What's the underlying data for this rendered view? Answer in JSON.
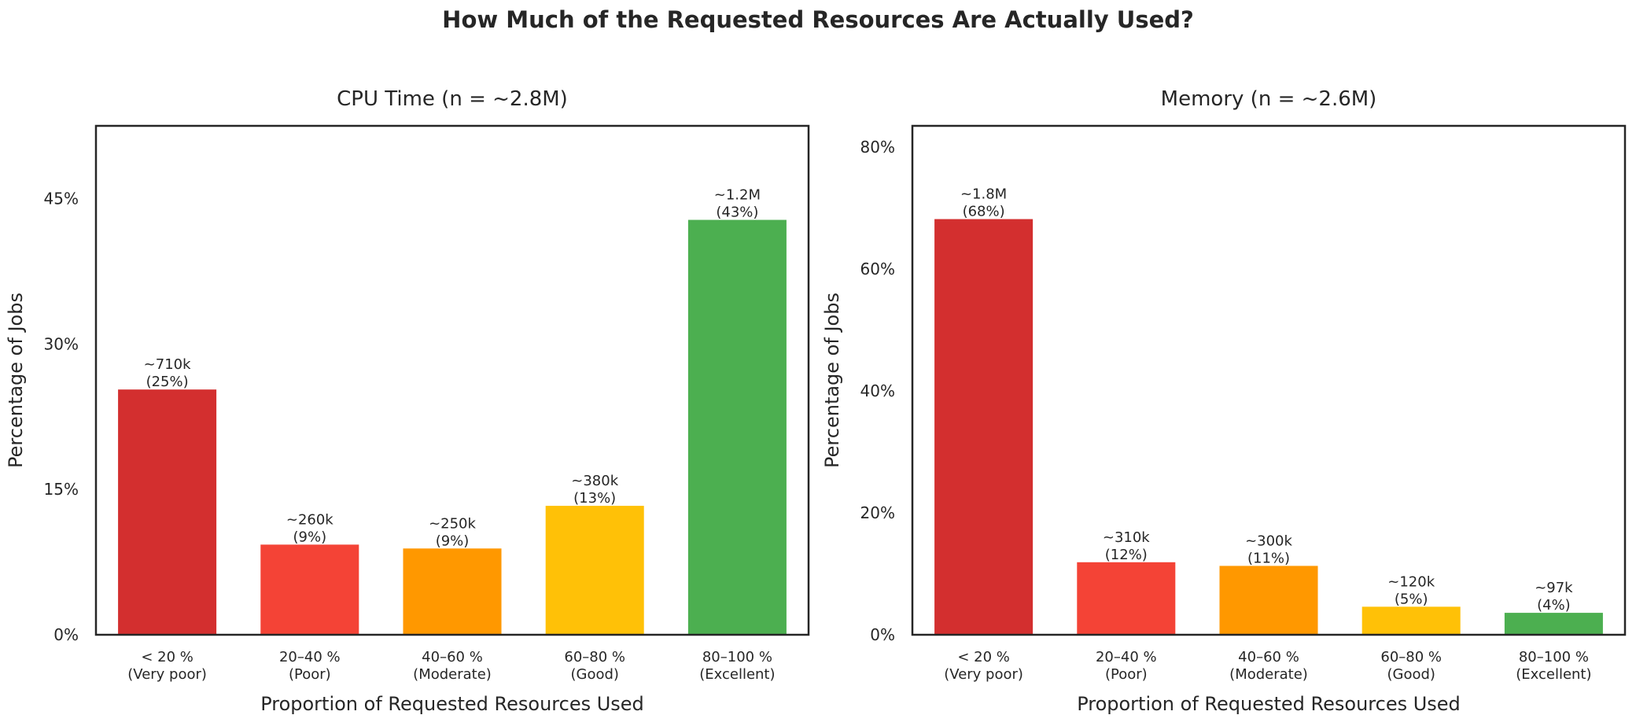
{
  "suptitle": "How Much of the Requested Resources Are Actually Used?",
  "chart_data": [
    {
      "type": "bar",
      "title": "CPU Time (n = ~2.8M)",
      "xlabel": "Proportion of Requested Resources Used",
      "ylabel": "Percentage of Jobs",
      "ylim": [
        0,
        52.5
      ],
      "yticks": [
        0,
        15,
        30,
        45
      ],
      "ytick_labels": [
        "0%",
        "15%",
        "30%",
        "45%"
      ],
      "categories": [
        "< 20 %\n(Very poor)",
        "20–40 %\n(Poor)",
        "40–60 %\n(Moderate)",
        "60–80 %\n(Good)",
        "80–100 %\n(Excellent)"
      ],
      "values": [
        25.3,
        9.3,
        8.9,
        13.3,
        42.8
      ],
      "bar_labels": [
        "~710k\n(25%)",
        "~260k\n(9%)",
        "~250k\n(9%)",
        "~380k\n(13%)",
        "~1.2M\n(43%)"
      ],
      "colors": [
        "#d32f2f",
        "#f44336",
        "#ff9800",
        "#ffc107",
        "#4caf50"
      ],
      "grid": false
    },
    {
      "type": "bar",
      "title": "Memory (n = ~2.6M)",
      "xlabel": "Proportion of Requested Resources Used",
      "ylabel": "Percentage of Jobs",
      "ylim": [
        0,
        83.5
      ],
      "yticks": [
        0,
        20,
        40,
        60,
        80
      ],
      "ytick_labels": [
        "0%",
        "20%",
        "40%",
        "60%",
        "80%"
      ],
      "categories": [
        "< 20 %\n(Very poor)",
        "20–40 %\n(Poor)",
        "40–60 %\n(Moderate)",
        "60–80 %\n(Good)",
        "80–100 %\n(Excellent)"
      ],
      "values": [
        68.2,
        11.9,
        11.3,
        4.6,
        3.6
      ],
      "bar_labels": [
        "~1.8M\n(68%)",
        "~310k\n(12%)",
        "~300k\n(11%)",
        "~120k\n(5%)",
        "~97k\n(4%)"
      ],
      "colors": [
        "#d32f2f",
        "#f44336",
        "#ff9800",
        "#ffc107",
        "#4caf50"
      ],
      "grid": false
    }
  ]
}
